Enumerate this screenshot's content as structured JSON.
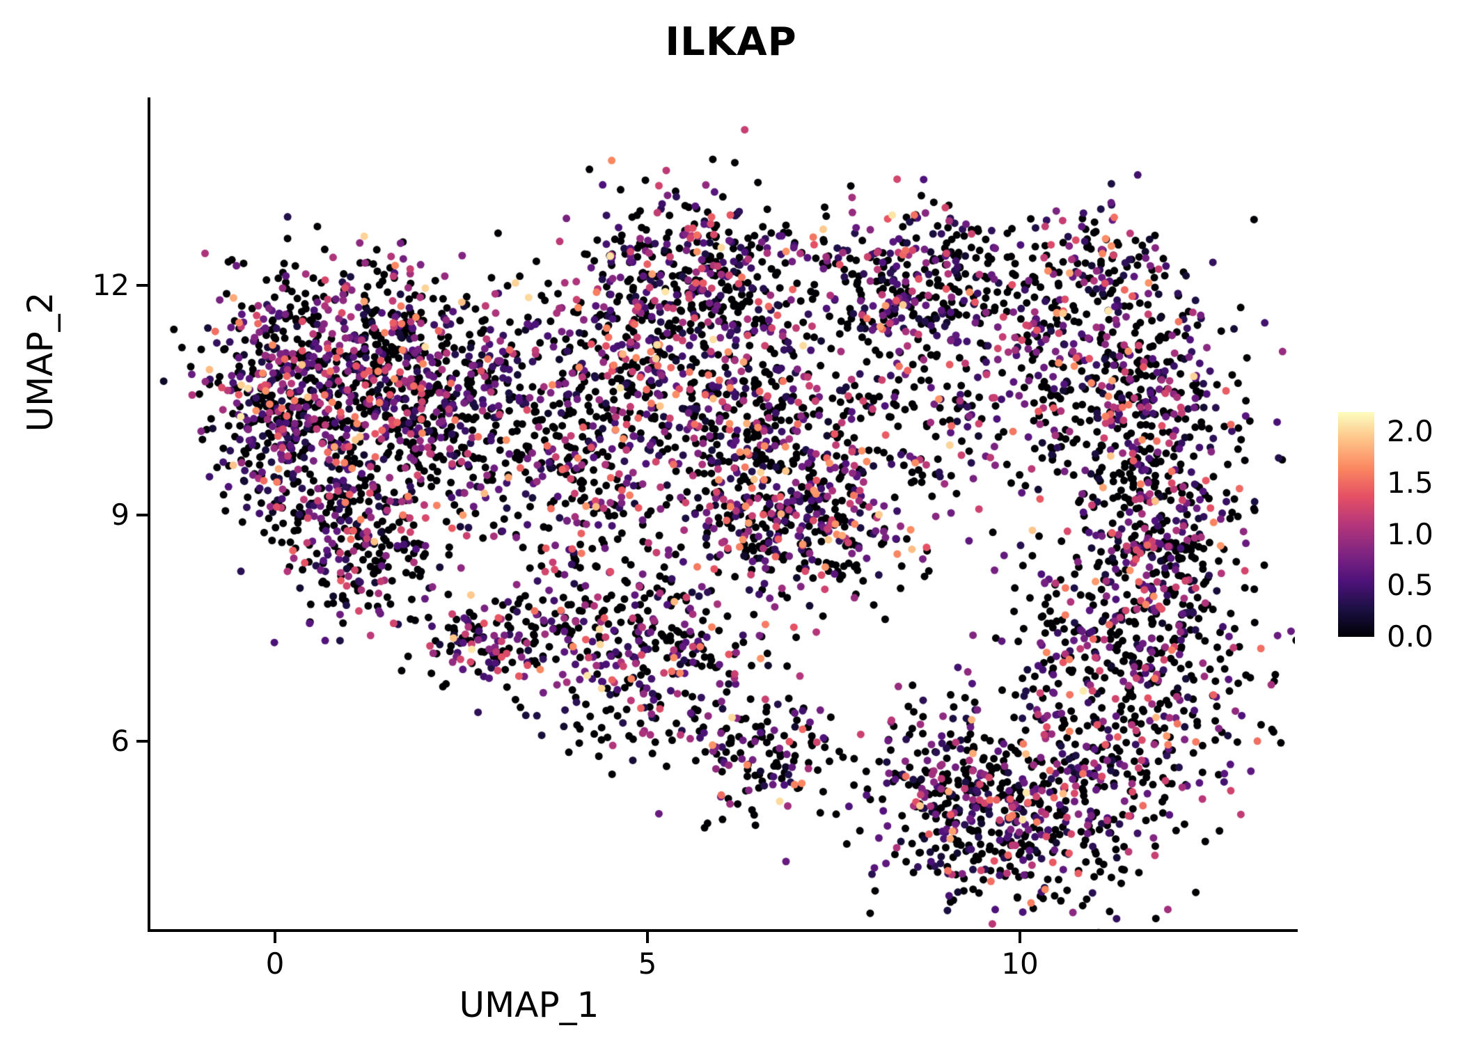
{
  "chart_data": {
    "type": "scatter",
    "title": "ILKAP",
    "xlabel": "UMAP_1",
    "ylabel": "UMAP_2",
    "xlim": [
      -1.68,
      13.69
    ],
    "ylim": [
      3.59,
      14.45
    ],
    "x_ticks": [
      0,
      5,
      10
    ],
    "x_tick_labels": [
      "0",
      "5",
      "10"
    ],
    "y_ticks": [
      12,
      9,
      6
    ],
    "y_tick_labels": [
      "12",
      "9",
      "6"
    ],
    "grid": false,
    "legend_position": "right",
    "colorbar": {
      "ticks": [
        "2.0",
        "1.5",
        "1.0",
        "0.5",
        "0.0"
      ],
      "tick_values": [
        2.0,
        1.5,
        1.0,
        0.5,
        0.0
      ],
      "vmin": 0.0,
      "vmax": 2.19
    },
    "colormap": {
      "name": "magma",
      "stops": [
        "#000004",
        "#1c1044",
        "#4f127b",
        "#812581",
        "#b5367a",
        "#e55064",
        "#fb8761",
        "#fec287",
        "#fcfdbf"
      ]
    },
    "point_radius_px": 5.5,
    "seed": 42,
    "expression_mixture": [
      {
        "p": 0.52,
        "min": 0.0,
        "max": 0.0
      },
      {
        "p": 0.28,
        "min": 0.15,
        "max": 0.8
      },
      {
        "p": 0.13,
        "min": 0.8,
        "max": 1.3
      },
      {
        "p": 0.055,
        "min": 1.3,
        "max": 1.7
      },
      {
        "p": 0.015,
        "min": 1.7,
        "max": 2.1
      }
    ],
    "clusters": [
      {
        "cx": 1.2,
        "cy": 10.8,
        "sx": 1.05,
        "sy": 0.75,
        "n": 850
      },
      {
        "cx": 0.0,
        "cy": 10.4,
        "sx": 0.45,
        "sy": 0.75,
        "n": 220
      },
      {
        "cx": 2.6,
        "cy": 10.1,
        "sx": 0.9,
        "sy": 0.7,
        "n": 300
      },
      {
        "cx": 1.3,
        "cy": 8.4,
        "sx": 0.55,
        "sy": 0.55,
        "n": 170
      },
      {
        "cx": 0.6,
        "cy": 9.1,
        "sx": 0.4,
        "sy": 0.4,
        "n": 90
      },
      {
        "cx": 2.8,
        "cy": 7.3,
        "sx": 0.4,
        "sy": 0.28,
        "n": 110
      },
      {
        "cx": 4.1,
        "cy": 7.6,
        "sx": 0.55,
        "sy": 0.65,
        "n": 170
      },
      {
        "cx": 4.4,
        "cy": 10.9,
        "sx": 0.6,
        "sy": 0.6,
        "n": 150
      },
      {
        "cx": 5.7,
        "cy": 12.0,
        "sx": 0.85,
        "sy": 0.6,
        "n": 470
      },
      {
        "cx": 8.5,
        "cy": 12.1,
        "sx": 0.7,
        "sy": 0.45,
        "n": 280
      },
      {
        "cx": 6.2,
        "cy": 10.3,
        "sx": 1.0,
        "sy": 0.6,
        "n": 420
      },
      {
        "cx": 7.0,
        "cy": 8.9,
        "sx": 0.75,
        "sy": 0.5,
        "n": 380
      },
      {
        "cx": 4.3,
        "cy": 9.4,
        "sx": 0.6,
        "sy": 0.5,
        "n": 120
      },
      {
        "cx": 5.4,
        "cy": 7.3,
        "sx": 0.5,
        "sy": 0.5,
        "n": 160
      },
      {
        "cx": 4.7,
        "cy": 6.6,
        "sx": 0.4,
        "sy": 0.5,
        "n": 60
      },
      {
        "cx": 6.5,
        "cy": 5.9,
        "sx": 0.55,
        "sy": 0.45,
        "n": 150
      },
      {
        "cx": 10.9,
        "cy": 12.3,
        "sx": 0.55,
        "sy": 0.4,
        "n": 110
      },
      {
        "cx": 11.4,
        "cy": 10.6,
        "sx": 0.85,
        "sy": 0.8,
        "n": 440
      },
      {
        "cx": 11.9,
        "cy": 8.8,
        "sx": 0.6,
        "sy": 0.7,
        "n": 300
      },
      {
        "cx": 11.4,
        "cy": 7.0,
        "sx": 0.8,
        "sy": 0.8,
        "n": 440
      },
      {
        "cx": 10.2,
        "cy": 5.1,
        "sx": 0.9,
        "sy": 0.65,
        "n": 480
      },
      {
        "cx": 9.0,
        "cy": 5.5,
        "sx": 0.55,
        "sy": 0.45,
        "n": 170
      },
      {
        "cx": 8.9,
        "cy": 10.4,
        "sx": 0.85,
        "sy": 0.85,
        "n": 170
      },
      {
        "cx": 10.2,
        "cy": 11.5,
        "sx": 0.7,
        "sy": 0.5,
        "n": 90
      }
    ],
    "outliers": [
      {
        "x": 0.05,
        "y": 9.6,
        "v": 1.8
      },
      {
        "x": 8.55,
        "y": 8.55,
        "v": 1.9
      },
      {
        "x": 9.3,
        "y": 6.95,
        "v": 0.9
      },
      {
        "x": 7.4,
        "y": 12.9,
        "v": 0.0
      },
      {
        "x": 10.85,
        "y": 6.7,
        "v": 2.1
      }
    ]
  },
  "colors": {
    "background": "#ffffff",
    "axis": "#000000",
    "text": "#000000"
  }
}
